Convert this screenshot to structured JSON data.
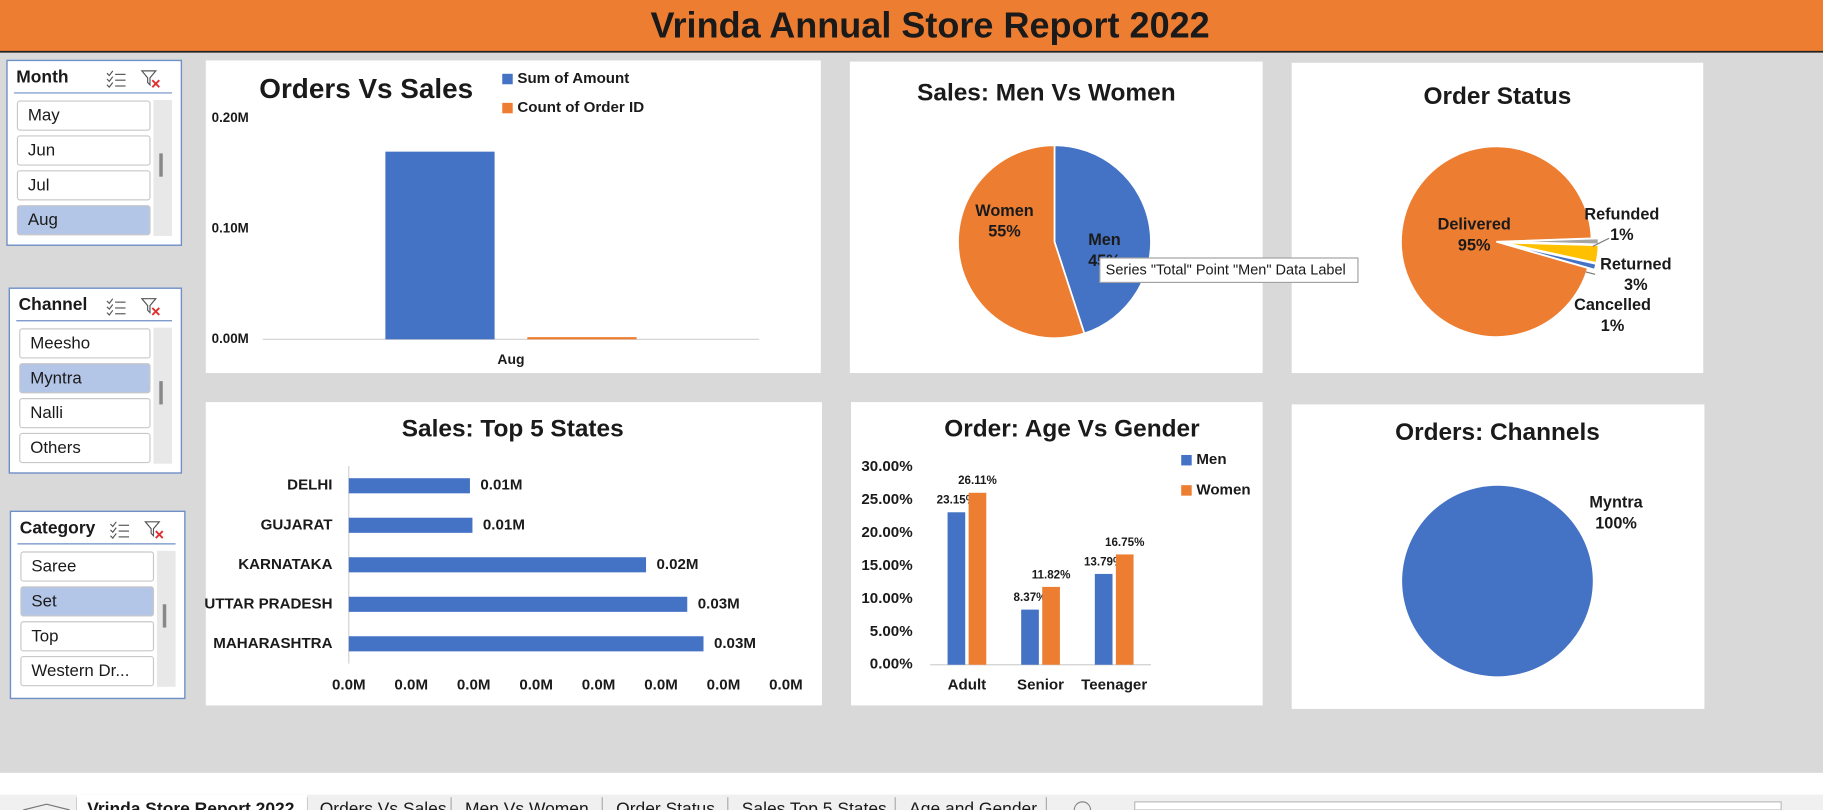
{
  "header": {
    "title": "Vrinda Annual Store Report 2022"
  },
  "slicers": [
    {
      "title": "Month",
      "items": [
        "May",
        "Jun",
        "Jul",
        "Aug"
      ],
      "selected": [
        false,
        false,
        false,
        true
      ]
    },
    {
      "title": "Channel",
      "items": [
        "Meesho",
        "Myntra",
        "Nalli",
        "Others"
      ],
      "selected": [
        false,
        true,
        false,
        false
      ]
    },
    {
      "title": "Category",
      "items": [
        "Saree",
        "Set",
        "Top",
        "Western Dr..."
      ],
      "selected": [
        false,
        true,
        false,
        false
      ]
    }
  ],
  "tooltip": "Series \"Total\" Point \"Men\" Data Label",
  "sheet_tabs": {
    "tabs": [
      "Vrinda Store Report 2022",
      "Orders Vs Sales",
      "Men Vs Women",
      "Order Status",
      "Sales Top 5 States",
      "Age and Gender"
    ],
    "active": 0
  },
  "chart_data": [
    {
      "type": "bar",
      "title": "Orders Vs Sales",
      "categories": [
        "Aug"
      ],
      "series": [
        {
          "name": "Sum of Amount",
          "color": "#4472c4",
          "values": [
            0.17
          ]
        },
        {
          "name": "Count of Order ID",
          "color": "#ed7d31",
          "values": [
            0.002
          ]
        }
      ],
      "ylim": [
        0,
        0.2
      ],
      "yticks": [
        {
          "value": 0,
          "label": "0.00M"
        },
        {
          "value": 0.1,
          "label": "0.10M"
        },
        {
          "value": 0.2,
          "label": "0.20M"
        }
      ],
      "grid": false,
      "legend": "top-right"
    },
    {
      "type": "pie",
      "title": "Sales: Men Vs Women",
      "categories": [
        "Men",
        "Women"
      ],
      "values": [
        45,
        55
      ],
      "value_labels": [
        "45%",
        "55%"
      ],
      "colors": [
        "#4472c4",
        "#ed7d31"
      ]
    },
    {
      "type": "pie",
      "title": "Order Status",
      "categories": [
        "Delivered",
        "Refunded",
        "Returned",
        "Cancelled"
      ],
      "values": [
        95,
        1,
        3,
        1
      ],
      "value_labels": [
        "95%",
        "1%",
        "3%",
        "1%"
      ],
      "colors": [
        "#ed7d31",
        "#a5a5a5",
        "#ffc000",
        "#4472c4"
      ]
    },
    {
      "type": "hbar",
      "title": "Sales: Top 5 States",
      "categories": [
        "DELHI",
        "GUJARAT",
        "KARNATAKA",
        "UTTAR PRADESH",
        "MAHARASHTRA"
      ],
      "values": [
        0.0097,
        0.0099,
        0.0238,
        0.0271,
        0.0284
      ],
      "value_labels": [
        "0.01M",
        "0.01M",
        "0.02M",
        "0.03M",
        "0.03M"
      ],
      "color": "#4472c4",
      "xlim": [
        0,
        0.035
      ],
      "xticks": [
        {
          "value": 0,
          "label": "0.0M"
        },
        {
          "value": 0.005,
          "label": "0.0M"
        },
        {
          "value": 0.01,
          "label": "0.0M"
        },
        {
          "value": 0.015,
          "label": "0.0M"
        },
        {
          "value": 0.02,
          "label": "0.0M"
        },
        {
          "value": 0.025,
          "label": "0.0M"
        },
        {
          "value": 0.03,
          "label": "0.0M"
        },
        {
          "value": 0.035,
          "label": "0.0M"
        }
      ],
      "grid": false
    },
    {
      "type": "bar",
      "title": "Order: Age Vs Gender",
      "categories": [
        "Adult",
        "Senior",
        "Teenager"
      ],
      "series": [
        {
          "name": "Men",
          "color": "#4472c4",
          "values": [
            23.15,
            8.37,
            13.79
          ],
          "value_labels": [
            "23.15%",
            "8.37%",
            "13.79%"
          ]
        },
        {
          "name": "Women",
          "color": "#ed7d31",
          "values": [
            26.11,
            11.82,
            16.75
          ],
          "value_labels": [
            "26.11%",
            "11.82%",
            "16.75%"
          ]
        }
      ],
      "ylim": [
        0,
        30
      ],
      "yticks": [
        {
          "value": 0,
          "label": "0.00%"
        },
        {
          "value": 5,
          "label": "5.00%"
        },
        {
          "value": 10,
          "label": "10.00%"
        },
        {
          "value": 15,
          "label": "15.00%"
        },
        {
          "value": 20,
          "label": "20.00%"
        },
        {
          "value": 25,
          "label": "25.00%"
        },
        {
          "value": 30,
          "label": "30.00%"
        }
      ],
      "grid": false,
      "legend": "right"
    },
    {
      "type": "pie",
      "title": "Orders: Channels",
      "categories": [
        "Myntra"
      ],
      "values": [
        100
      ],
      "value_labels": [
        "100%"
      ],
      "colors": [
        "#4472c4"
      ]
    }
  ]
}
